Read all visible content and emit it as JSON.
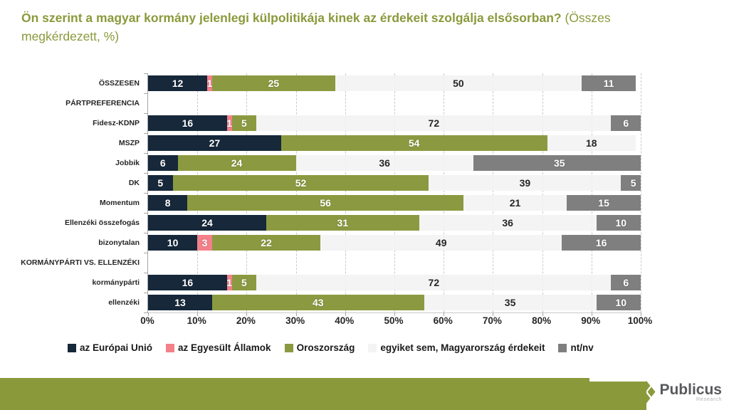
{
  "title": {
    "question": "Ön szerint a magyar kormány jelenlegi külpolitikája kinek az érdekeit szolgálja elsősorban?",
    "suffix": " (Összes megkérdezett, %)"
  },
  "chart_data": {
    "type": "bar",
    "orientation": "horizontal",
    "stacked": true,
    "unit": "%",
    "xlim": [
      0,
      100
    ],
    "x_ticks": [
      "0%",
      "10%",
      "20%",
      "30%",
      "40%",
      "50%",
      "60%",
      "70%",
      "80%",
      "90%",
      "100%"
    ],
    "grid": "vertical-dashed",
    "legend_position": "bottom",
    "series": [
      {
        "name": "az Európai Unió",
        "color": "#16283a",
        "text_color": "#ffffff"
      },
      {
        "name": "az Egyesült Államok",
        "color": "#f4808a",
        "text_color": "#ffffff"
      },
      {
        "name": "Oroszország",
        "color": "#8b9a40",
        "text_color": "#ffffff"
      },
      {
        "name": "egyiket sem, Magyarország érdekeit",
        "color": "rgba(242,242,242,0.88)",
        "text_color": "#262626"
      },
      {
        "name": "nt/nv",
        "color": "#7f7f7f",
        "text_color": "#ffffff"
      }
    ],
    "rows": [
      {
        "label": "ÖSSZESEN",
        "values": [
          12,
          1,
          25,
          50,
          11
        ]
      },
      {
        "label": "PÁRTPREFERENCIA",
        "values": null
      },
      {
        "label": "Fidesz-KDNP",
        "values": [
          16,
          1,
          5,
          72,
          6
        ]
      },
      {
        "label": "MSZP",
        "values": [
          27,
          0,
          54,
          18,
          0
        ]
      },
      {
        "label": "Jobbik",
        "values": [
          6,
          0,
          24,
          36,
          35
        ]
      },
      {
        "label": "DK",
        "values": [
          5,
          0,
          52,
          39,
          5
        ]
      },
      {
        "label": "Momentum",
        "values": [
          8,
          0,
          56,
          21,
          15
        ]
      },
      {
        "label": "Ellenzéki összefogás",
        "values": [
          24,
          0,
          31,
          36,
          10
        ]
      },
      {
        "label": "bizonytalan",
        "values": [
          10,
          3,
          22,
          49,
          16
        ]
      },
      {
        "label": "KORMÁNYPÁRTI VS. ELLENZÉKI",
        "values": null
      },
      {
        "label": "kormánypárti",
        "values": [
          16,
          1,
          5,
          72,
          6
        ]
      },
      {
        "label": "ellenzéki",
        "values": [
          13,
          0,
          43,
          35,
          10
        ]
      }
    ]
  },
  "footer": {
    "brand": "Publicus",
    "brand_sub": "Research",
    "bar_color": "#8a9a3b"
  },
  "colors": {
    "title": "#8a9a3b",
    "gridline": "#c9c9c9",
    "axis": "#a6a6a6"
  }
}
